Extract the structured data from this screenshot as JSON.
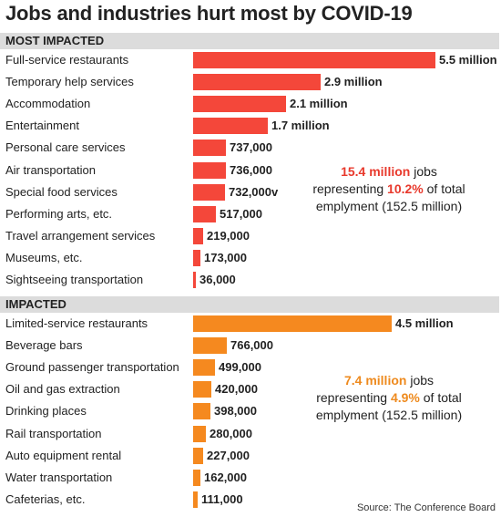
{
  "title": "Jobs and industries hurt most by COVID-19",
  "source": "Source: The Conference Board",
  "colors": {
    "most": "#f4473a",
    "impacted": "#f5891f",
    "most_text": "#e8392c",
    "impacted_text": "#ee8a1e"
  },
  "chart_data": [
    {
      "type": "bar",
      "section_title": "MOST IMPACTED",
      "categories": [
        "Full-service restaurants",
        "Temporary help services",
        "Accommodation",
        "Entertainment",
        "Personal care services",
        "Air transportation",
        "Special food services",
        "Performing arts, etc.",
        "Travel arrangement services",
        "Museums, etc.",
        "Sightseeing transportation"
      ],
      "values": [
        5500000,
        2900000,
        2100000,
        1700000,
        737000,
        736000,
        732000,
        517000,
        219000,
        173000,
        36000
      ],
      "value_labels": [
        "5.5 million",
        "2.9 million",
        "2.1 million",
        "1.7 million",
        "737,000",
        "736,000",
        "732,000v",
        "517,000",
        "219,000",
        "173,000",
        "36,000"
      ],
      "callout": {
        "highlight1": "15.4 million",
        "text1": " jobs",
        "text2": "representing ",
        "highlight2": "10.2%",
        "text3": " of total",
        "text4": "emplyment (152.5 million)"
      }
    },
    {
      "type": "bar",
      "section_title": "IMPACTED",
      "categories": [
        "Limited-service restaurants",
        "Beverage bars",
        "Ground passenger transportation",
        "Oil and gas extraction",
        "Drinking places",
        "Rail transportation",
        "Auto equipment rental",
        "Water transportation",
        "Cafeterias, etc."
      ],
      "values": [
        4500000,
        766000,
        499000,
        420000,
        398000,
        280000,
        227000,
        162000,
        111000
      ],
      "value_labels": [
        "4.5 million",
        "766,000",
        "499,000",
        "420,000",
        "398,000",
        "280,000",
        "227,000",
        "162,000",
        "111,000"
      ],
      "callout": {
        "highlight1": "7.4 million",
        "text1": " jobs",
        "text2": "representing ",
        "highlight2": "4.9%",
        "text3": " of total",
        "text4": "emplyment (152.5 million)"
      }
    }
  ]
}
